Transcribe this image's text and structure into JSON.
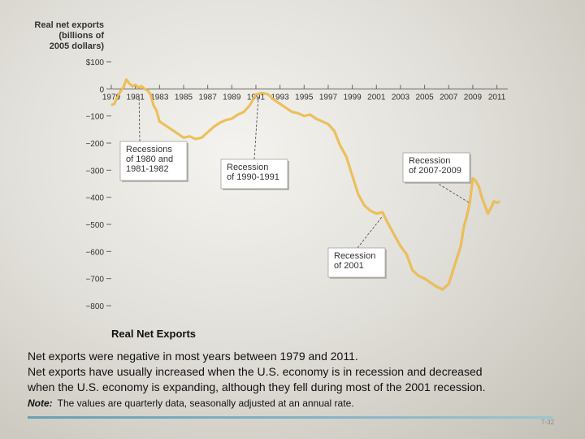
{
  "chart_data": {
    "type": "line",
    "ylabel": [
      "Real net exports",
      "(billions of",
      "2005 dollars)"
    ],
    "ylim": [
      -800,
      100
    ],
    "xlim": [
      1979,
      2011.5
    ],
    "y_ticks": [
      {
        "v": 100,
        "label": "$100"
      },
      {
        "v": 0,
        "label": "0"
      },
      {
        "v": -100,
        "label": "−100"
      },
      {
        "v": -200,
        "label": "−200"
      },
      {
        "v": -300,
        "label": "−300"
      },
      {
        "v": -400,
        "label": "−400"
      },
      {
        "v": -500,
        "label": "−500"
      },
      {
        "v": -600,
        "label": "−600"
      },
      {
        "v": -700,
        "label": "−700"
      },
      {
        "v": -800,
        "label": "−800"
      }
    ],
    "x_ticks": [
      {
        "v": 1979,
        "label": "1979"
      },
      {
        "v": 1981,
        "label": "1981"
      },
      {
        "v": 1983,
        "label": "1983"
      },
      {
        "v": 1985,
        "label": "1985"
      },
      {
        "v": 1987,
        "label": "1987"
      },
      {
        "v": 1989,
        "label": "1989"
      },
      {
        "v": 1991,
        "label": "1991"
      },
      {
        "v": 1993,
        "label": "1993"
      },
      {
        "v": 1995,
        "label": "1995"
      },
      {
        "v": 1997,
        "label": "1997"
      },
      {
        "v": 1999,
        "label": "1999"
      },
      {
        "v": 2001,
        "label": "2001"
      },
      {
        "v": 2003,
        "label": "2003"
      },
      {
        "v": 2005,
        "label": "2005"
      },
      {
        "v": 2007,
        "label": "2007"
      },
      {
        "v": 2009,
        "label": "2009"
      },
      {
        "v": 2011,
        "label": "2011"
      }
    ],
    "series": [
      {
        "color": "#f2c04a",
        "x": [
          1979.0,
          1979.25,
          1979.5,
          1979.75,
          1980.0,
          1980.25,
          1980.5,
          1980.75,
          1981.0,
          1981.25,
          1981.5,
          1981.75,
          1982.0,
          1982.25,
          1982.5,
          1982.75,
          1983.0,
          1983.5,
          1984.0,
          1984.5,
          1985.0,
          1985.5,
          1986.0,
          1986.5,
          1987.0,
          1987.5,
          1988.0,
          1988.5,
          1989.0,
          1989.5,
          1990.0,
          1990.5,
          1991.0,
          1991.5,
          1992.0,
          1992.5,
          1993.0,
          1993.5,
          1994.0,
          1994.5,
          1995.0,
          1995.5,
          1996.0,
          1996.5,
          1997.0,
          1997.5,
          1998.0,
          1998.5,
          1999.0,
          1999.5,
          2000.0,
          2000.5,
          2001.0,
          2001.5,
          2002.0,
          2002.5,
          2003.0,
          2003.5,
          2004.0,
          2004.5,
          2005.0,
          2005.5,
          2006.0,
          2006.5,
          2007.0,
          2007.5,
          2008.0,
          2008.25,
          2008.5,
          2008.75,
          2009.0,
          2009.25,
          2009.5,
          2009.75,
          2010.0,
          2010.25,
          2010.5,
          2010.75,
          2011.0,
          2011.25
        ],
        "y": [
          -60,
          -55,
          -30,
          -10,
          5,
          35,
          20,
          10,
          15,
          5,
          10,
          0,
          -5,
          -20,
          -60,
          -80,
          -120,
          -135,
          -150,
          -165,
          -180,
          -175,
          -185,
          -180,
          -160,
          -140,
          -125,
          -115,
          -110,
          -95,
          -85,
          -60,
          -20,
          -15,
          -20,
          -40,
          -55,
          -70,
          -85,
          -90,
          -100,
          -95,
          -110,
          -120,
          -130,
          -155,
          -210,
          -250,
          -320,
          -390,
          -430,
          -450,
          -460,
          -455,
          -500,
          -540,
          -580,
          -610,
          -670,
          -690,
          -700,
          -715,
          -730,
          -740,
          -720,
          -650,
          -580,
          -510,
          -470,
          -420,
          -330,
          -340,
          -360,
          -400,
          -430,
          -460,
          -440,
          -415,
          -420,
          -415
        ]
      }
    ],
    "annotations": [
      {
        "lines": [
          "Recessions",
          "of 1980 and",
          "1981-1982"
        ]
      },
      {
        "lines": [
          "Recession",
          "of 1990-1991"
        ]
      },
      {
        "lines": [
          "Recession",
          "of 2007-2009"
        ]
      },
      {
        "lines": [
          "Recession",
          "of 2001"
        ]
      }
    ]
  },
  "caption": {
    "figure_title": "Real Net Exports",
    "line1": "Net exports were negative in most years between 1979 and 2011.",
    "line2": "Net exports have usually increased when the U.S. economy is in recession and decreased",
    "line3": "when the U.S. economy is expanding, although they fell during most of the 2001 recession.",
    "note_label": "Note:",
    "note_text": "The values are quarterly data, seasonally adjusted at an annual rate.",
    "page_number": "7-32"
  }
}
